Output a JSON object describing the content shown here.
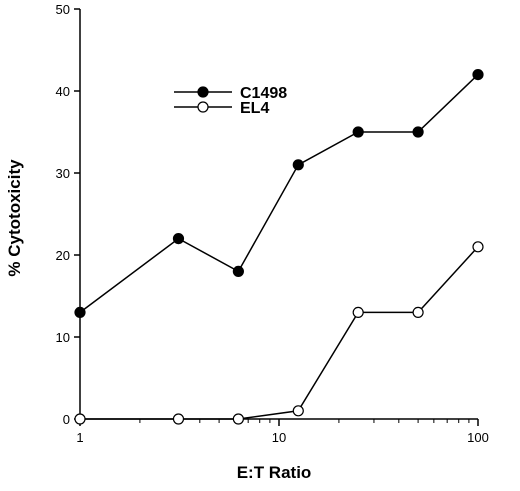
{
  "chart_data": {
    "type": "line",
    "title": "",
    "xlabel": "E:T Ratio",
    "ylabel": "% Cytotoxicity",
    "xscale": "log",
    "xlim": [
      1,
      100
    ],
    "ylim": [
      0,
      50
    ],
    "x_ticks": [
      {
        "value": 1,
        "label": "1"
      },
      {
        "value": 10,
        "label": "10"
      },
      {
        "value": 100,
        "label": "100"
      }
    ],
    "y_ticks": [
      {
        "value": 0,
        "label": "0"
      },
      {
        "value": 10,
        "label": "10"
      },
      {
        "value": 20,
        "label": "20"
      },
      {
        "value": 30,
        "label": "30"
      },
      {
        "value": 40,
        "label": "40"
      },
      {
        "value": 50,
        "label": "50"
      }
    ],
    "grid": false,
    "legend_position": "top-left",
    "series": [
      {
        "name": "C1498",
        "marker": "filled-circle",
        "x": [
          1,
          3.125,
          6.25,
          12.5,
          25,
          50,
          100
        ],
        "y": [
          13,
          22,
          18,
          31,
          35,
          35,
          42
        ]
      },
      {
        "name": "EL4",
        "marker": "open-circle",
        "x": [
          1,
          3.125,
          6.25,
          12.5,
          25,
          50,
          100
        ],
        "y": [
          0,
          0,
          0,
          1,
          13,
          13,
          21
        ]
      }
    ]
  }
}
